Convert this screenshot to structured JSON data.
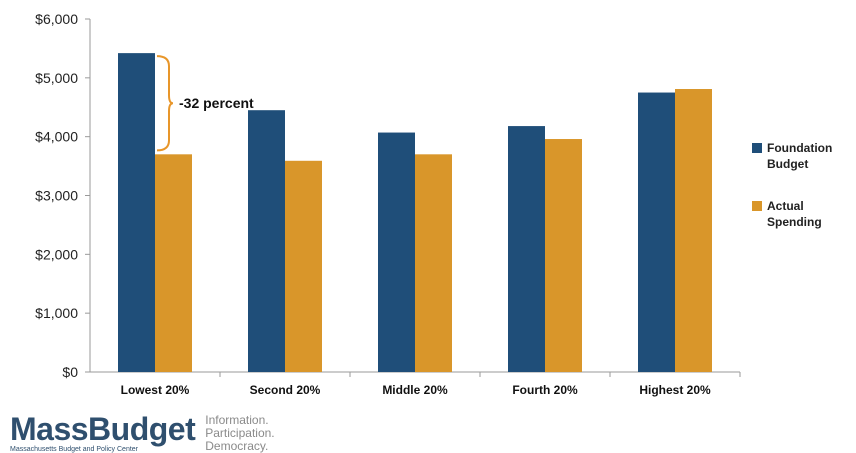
{
  "chart_data": {
    "type": "bar",
    "categories": [
      "Lowest 20%",
      "Second 20%",
      "Middle 20%",
      "Fourth 20%",
      "Highest 20%"
    ],
    "series": [
      {
        "name": "Foundation Budget",
        "color": "#1f4e79",
        "values": [
          5420,
          4450,
          4070,
          4180,
          4750
        ]
      },
      {
        "name": "Actual Spending",
        "color": "#d9962a",
        "values": [
          3700,
          3590,
          3700,
          3960,
          4810
        ]
      }
    ],
    "ylim": [
      0,
      6000
    ],
    "yticks": [
      0,
      1000,
      2000,
      3000,
      4000,
      5000,
      6000
    ],
    "ytick_labels": [
      "$0",
      "$1,000",
      "$2,000",
      "$3,000",
      "$4,000",
      "$5,000",
      "$6,000"
    ],
    "xlabel": "",
    "ylabel": "",
    "title": "",
    "grid": false,
    "legend_position": "right",
    "annotation": {
      "text": "-32 percent",
      "category": "Lowest 20%",
      "color": "#e8962a"
    }
  },
  "legend": {
    "foundation_line1": "Foundation",
    "foundation_line2": "Budget",
    "actual_line1": "Actual",
    "actual_line2": "Spending"
  },
  "footer": {
    "logo": "MassBudget",
    "tagline1": "Information.",
    "tagline2": "Participation.",
    "tagline3": "Democracy.",
    "subline": "Massachusetts Budget and Policy Center"
  }
}
